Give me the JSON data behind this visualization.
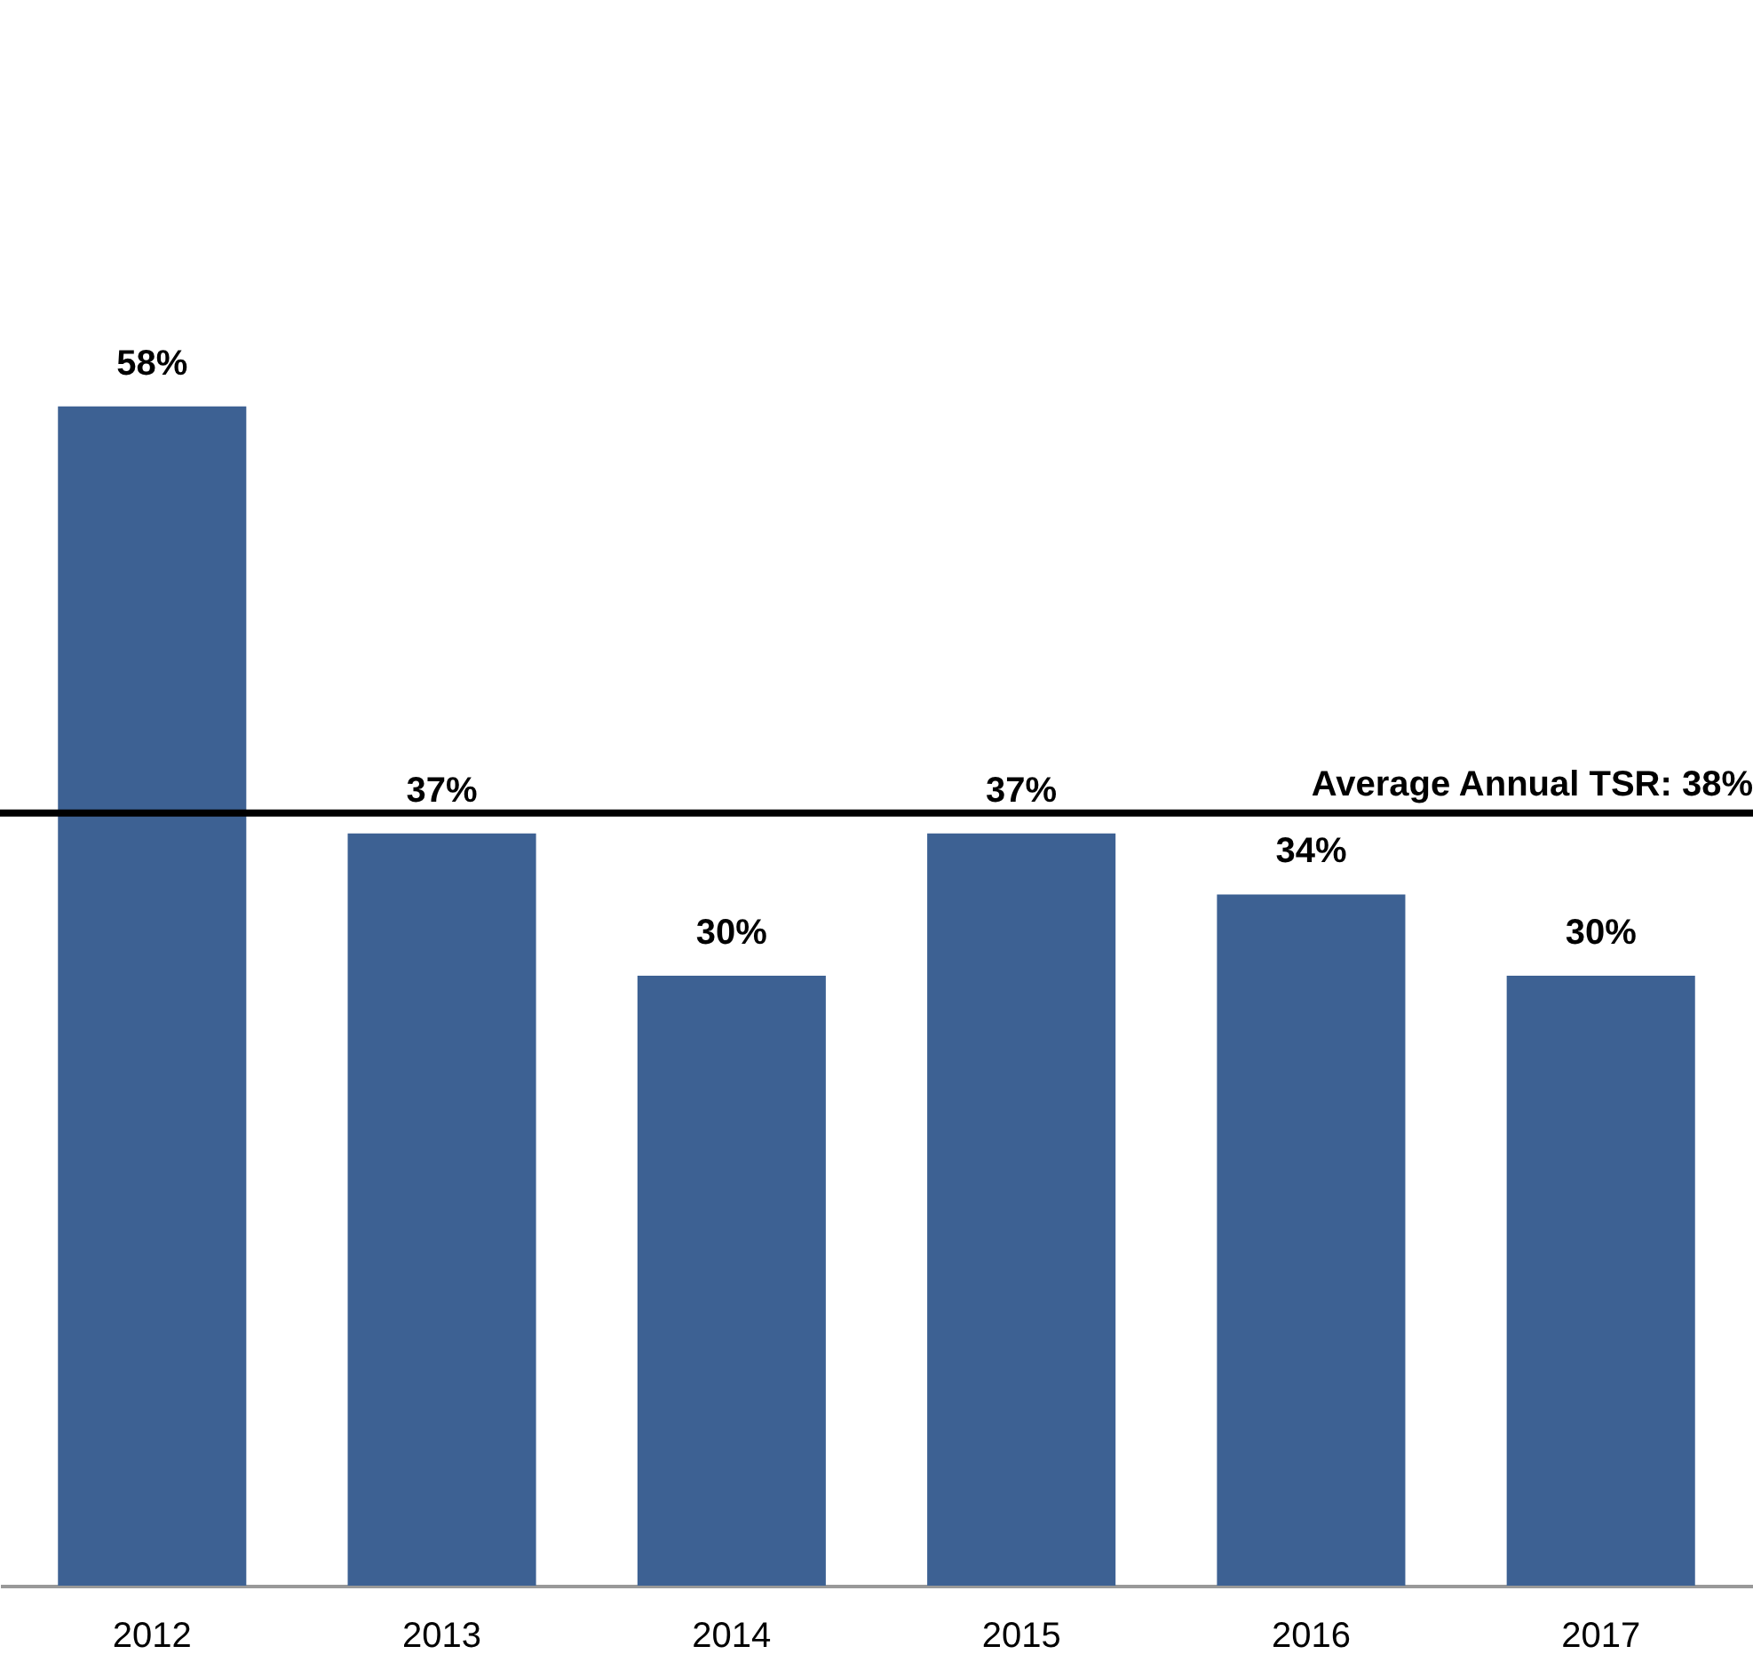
{
  "chart_data": {
    "type": "bar",
    "categories": [
      "2012",
      "2013",
      "2014",
      "2015",
      "2016",
      "2017"
    ],
    "series": [
      {
        "color": "#3d6193",
        "values": [
          58,
          37,
          30,
          37,
          34,
          30
        ],
        "value_labels": [
          "58%",
          "37%",
          "30%",
          "37%",
          "34%",
          "30%"
        ]
      }
    ],
    "ref_lines": [
      {
        "axis": "y",
        "value": 38,
        "label": "Average Annual TSR:  38%",
        "color": "#000000"
      }
    ],
    "grid": false
  }
}
